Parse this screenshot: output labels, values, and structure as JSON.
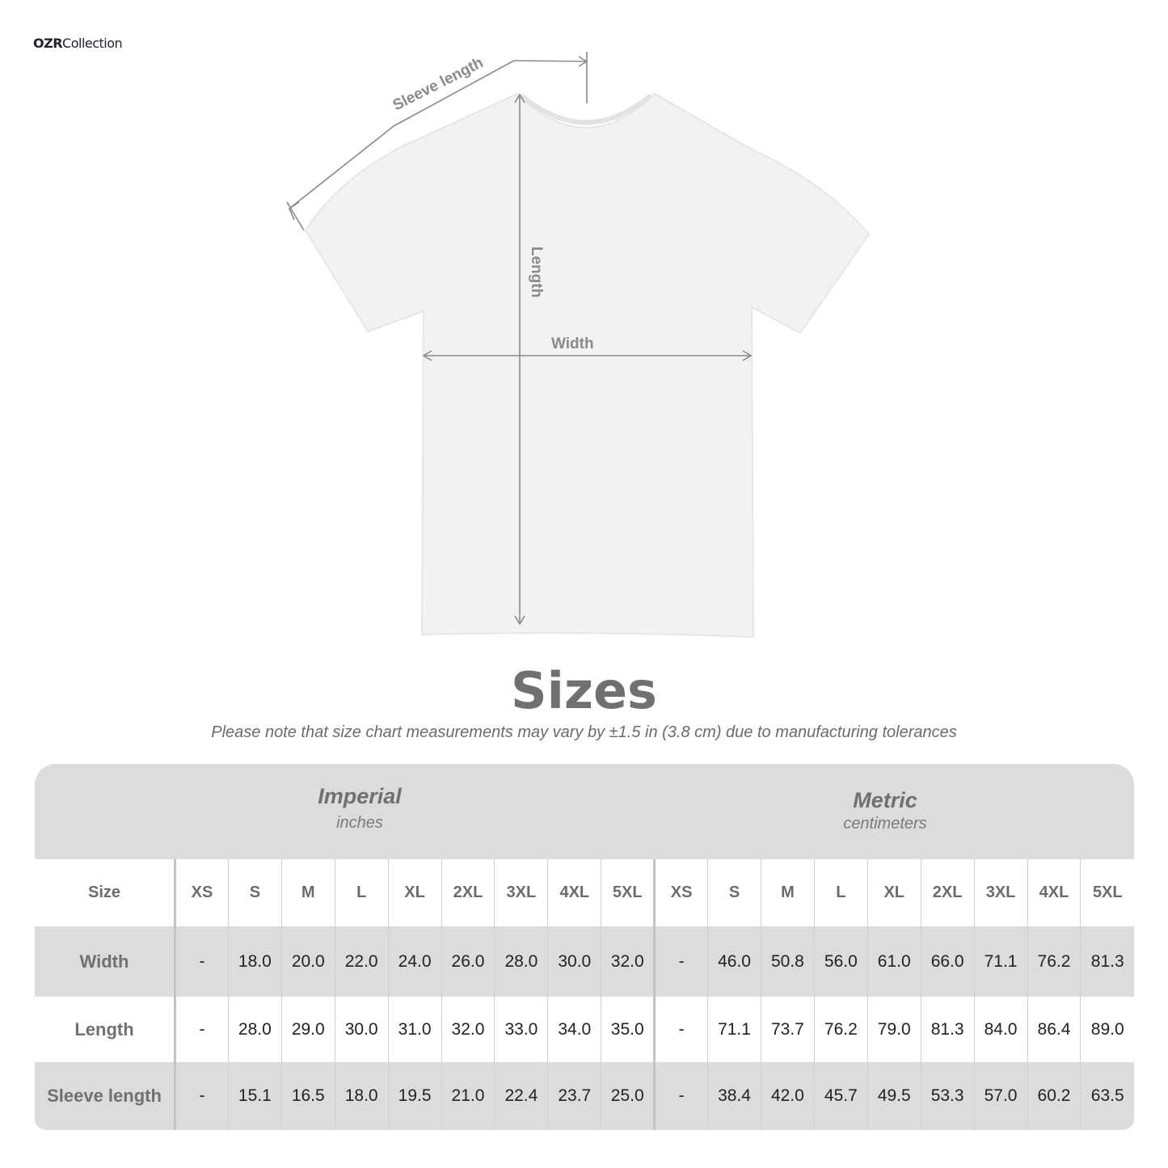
{
  "brand": {
    "logo_bold": "OZR",
    "logo_rest": "Collection"
  },
  "diagram": {
    "sleeve_label": "Sleeve length",
    "length_label": "Length",
    "width_label": "Width"
  },
  "title": "Sizes",
  "note": "Please note that size chart measurements may vary by ±1.5 in (3.8 cm) due to manufacturing tolerances",
  "imperial": {
    "heading": "Imperial",
    "unit": "inches"
  },
  "metric": {
    "heading": "Metric",
    "unit": "centimeters"
  },
  "table": {
    "size_label": "Size",
    "sizes": [
      "XS",
      "S",
      "M",
      "L",
      "XL",
      "2XL",
      "3XL",
      "4XL",
      "5XL"
    ],
    "rows": [
      {
        "label": "Width",
        "imperial": [
          "-",
          "18.0",
          "20.0",
          "22.0",
          "24.0",
          "26.0",
          "28.0",
          "30.0",
          "32.0"
        ],
        "metric": [
          "-",
          "46.0",
          "50.8",
          "56.0",
          "61.0",
          "66.0",
          "71.1",
          "76.2",
          "81.3"
        ]
      },
      {
        "label": "Length",
        "imperial": [
          "-",
          "28.0",
          "29.0",
          "30.0",
          "31.0",
          "32.0",
          "33.0",
          "34.0",
          "35.0"
        ],
        "metric": [
          "-",
          "71.1",
          "73.7",
          "76.2",
          "79.0",
          "81.3",
          "84.0",
          "86.4",
          "89.0"
        ]
      },
      {
        "label": "Sleeve length",
        "imperial": [
          "-",
          "15.1",
          "16.5",
          "18.0",
          "19.5",
          "21.0",
          "22.4",
          "23.7",
          "25.0"
        ],
        "metric": [
          "-",
          "38.4",
          "42.0",
          "45.7",
          "49.5",
          "53.3",
          "57.0",
          "60.2",
          "63.5"
        ]
      }
    ]
  },
  "colors": {
    "band": "#dcdcdc",
    "heading_gray": "#6f7170",
    "shirt": "#f2f2f2"
  }
}
